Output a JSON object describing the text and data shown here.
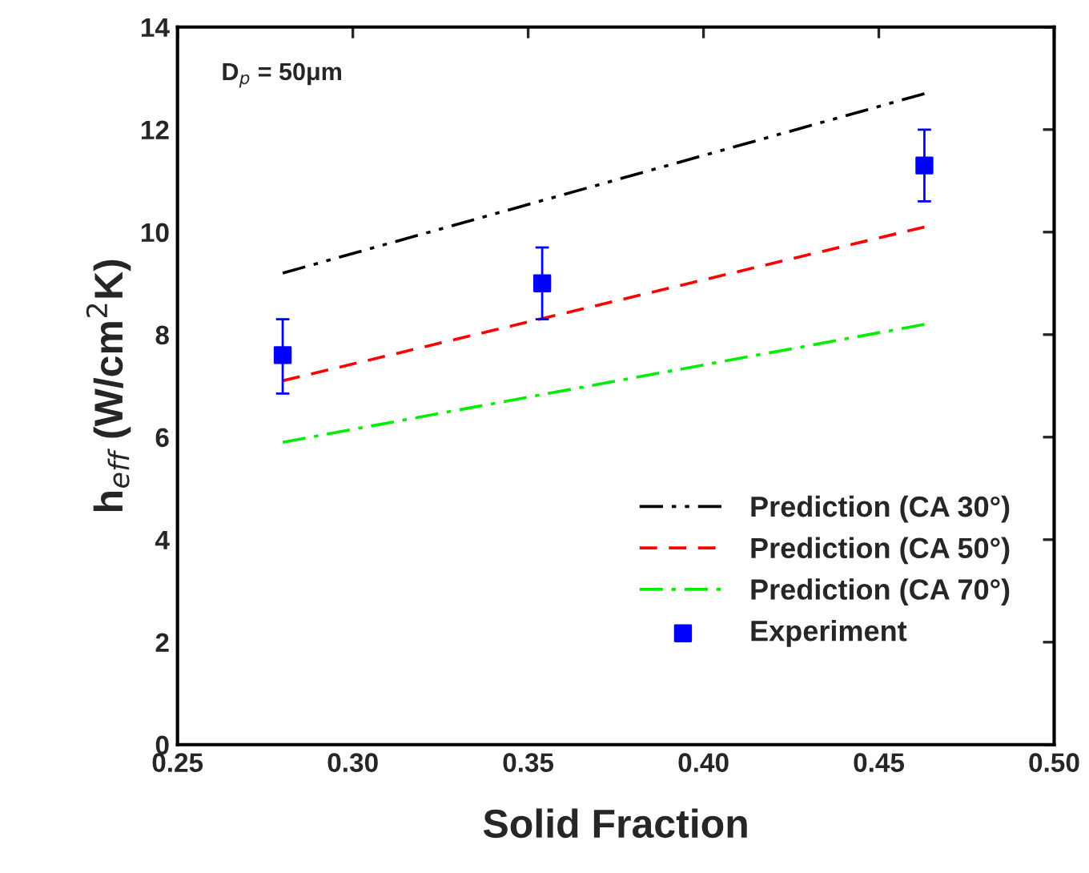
{
  "chart_data": {
    "type": "line",
    "xlabel": "Solid Fraction",
    "ylabel": "h$_{eff}$ (W/cm$^{2}$K)",
    "annotations": [
      "D$_{p}$ = 50μm"
    ],
    "xlim": [
      0.25,
      0.5
    ],
    "xticks": [
      {
        "value": 0.25,
        "label": "0.25"
      },
      {
        "value": 0.3,
        "label": "0.30"
      },
      {
        "value": 0.35,
        "label": "0.35"
      },
      {
        "value": 0.4,
        "label": "0.40"
      },
      {
        "value": 0.45,
        "label": "0.45"
      },
      {
        "value": 0.5,
        "label": "0.50"
      }
    ],
    "ylim": [
      0,
      14
    ],
    "yticks": [
      0,
      2,
      4,
      6,
      8,
      10,
      12,
      14
    ],
    "grid": false,
    "legend": "bottom right",
    "series": [
      {
        "name": "Prediction (CA 30°)",
        "color": "#000000",
        "line_style": "dashdotdot",
        "marker": "none",
        "x": [
          0.28,
          0.463
        ],
        "values": [
          9.2,
          12.7
        ]
      },
      {
        "name": "Prediction (CA 50°)",
        "color": "#ff0000",
        "line_style": "dashed",
        "marker": "none",
        "x": [
          0.28,
          0.463
        ],
        "values": [
          7.1,
          10.1
        ]
      },
      {
        "name": "Prediction (CA 70°)",
        "color": "#00ee00",
        "line_style": "dashdot",
        "marker": "none",
        "x": [
          0.28,
          0.463
        ],
        "values": [
          5.9,
          8.2
        ]
      },
      {
        "name": "Experiment",
        "type": "scatter",
        "color": "#0000ff",
        "marker": "square",
        "x": [
          0.28,
          0.354,
          0.463
        ],
        "values": [
          7.6,
          9.0,
          11.3
        ],
        "errors": [
          [
            6.85,
            8.3
          ],
          [
            8.3,
            9.7
          ],
          [
            10.6,
            12.0
          ]
        ]
      }
    ]
  }
}
